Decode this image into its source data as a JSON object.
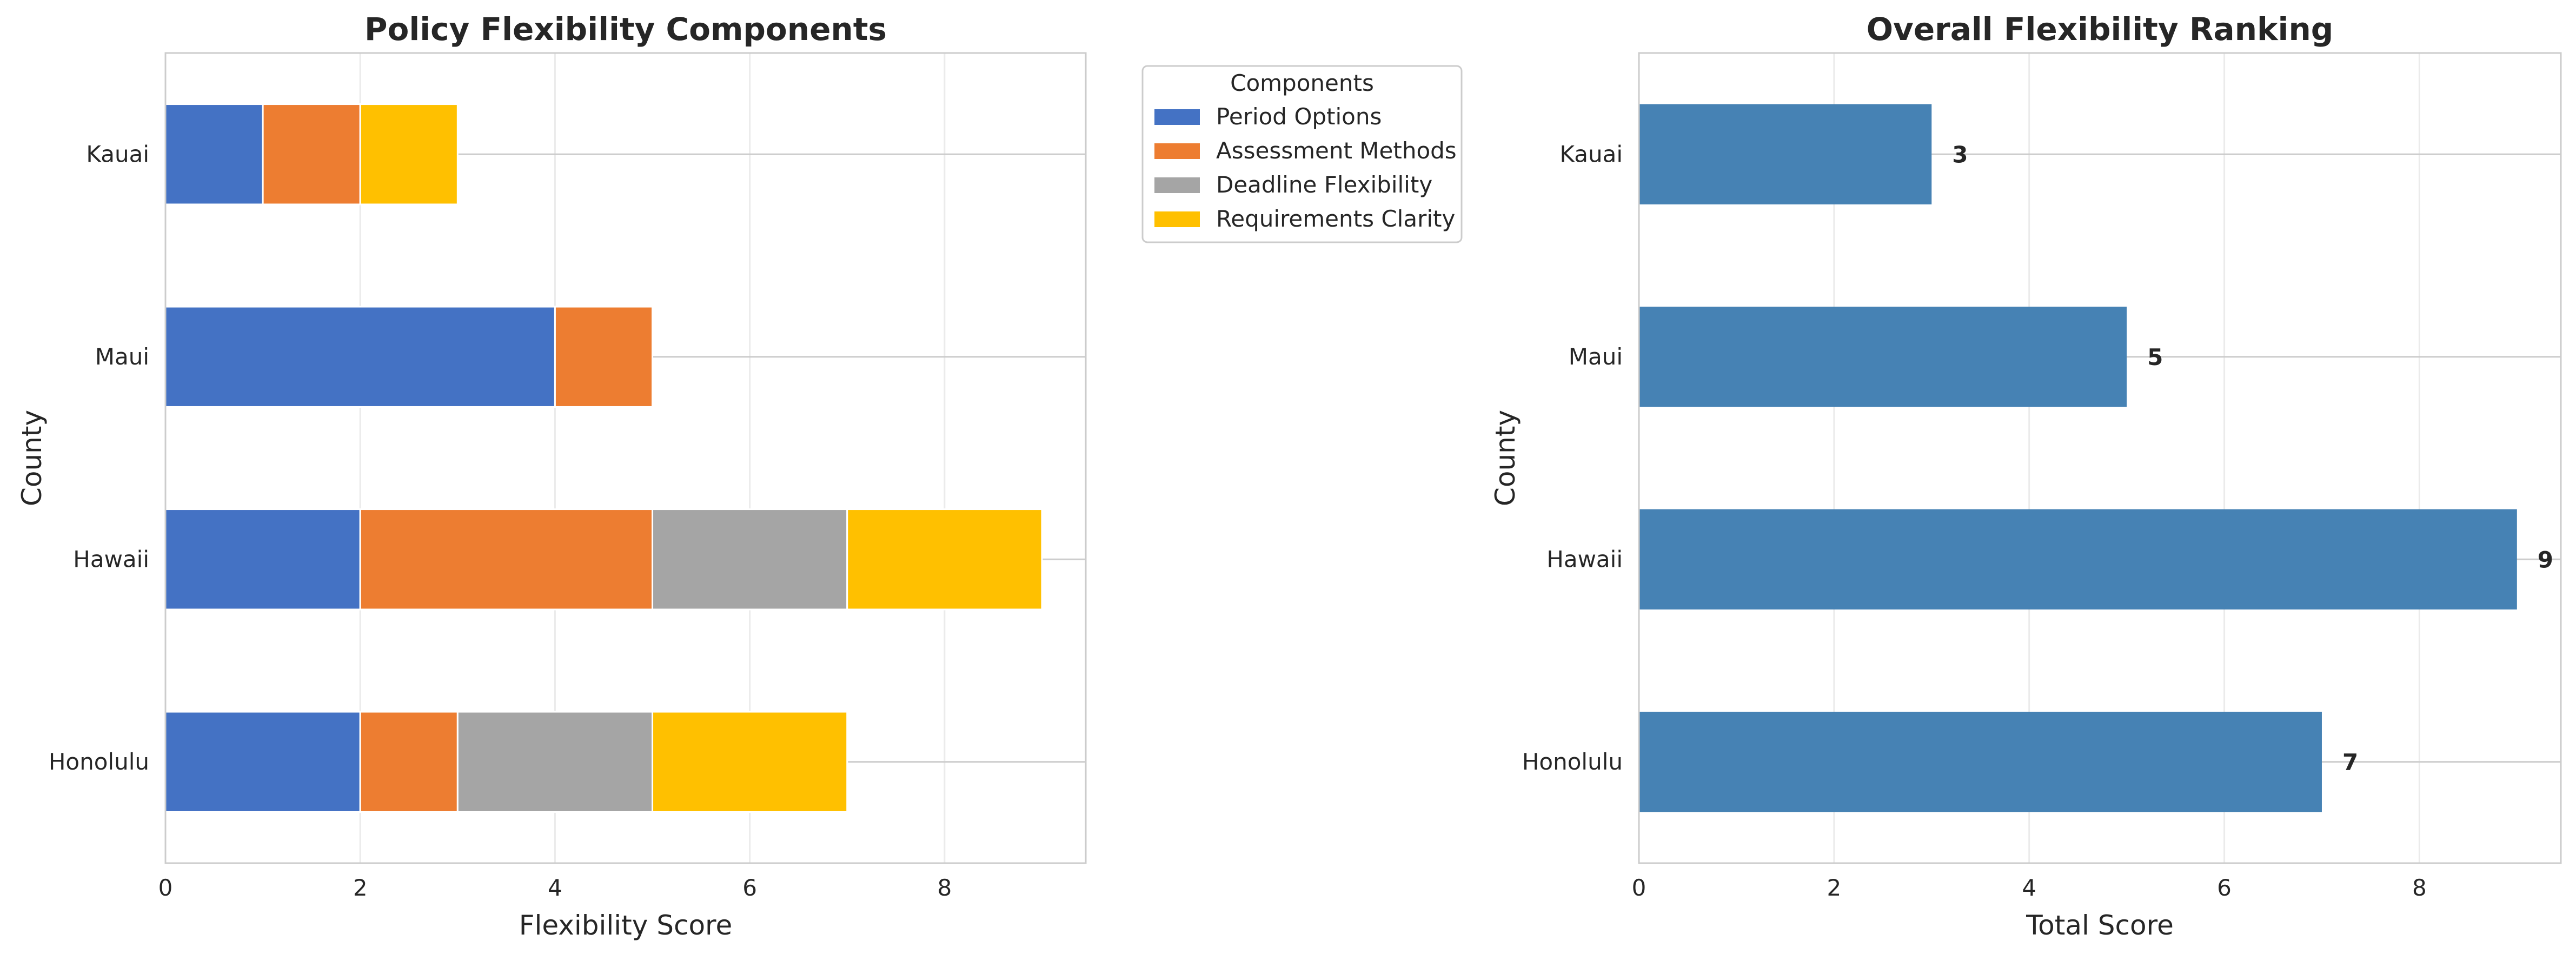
{
  "chart_data": [
    {
      "type": "bar",
      "orientation": "horizontal",
      "stacked": true,
      "title": "Policy Flexibility Components",
      "xlabel": "Flexibility Score",
      "ylabel": "County",
      "categories": [
        "Honolulu",
        "Hawaii",
        "Maui",
        "Kauai"
      ],
      "xlim": [
        0,
        9.45
      ],
      "xticks": [
        0,
        2,
        4,
        6,
        8
      ],
      "grid": true,
      "legend": {
        "title": "Components",
        "placement": "outside-top-right"
      },
      "series": [
        {
          "name": "Period Options",
          "color": "#4472C4",
          "values": [
            2,
            2,
            4,
            1
          ]
        },
        {
          "name": "Assessment Methods",
          "color": "#ED7D31",
          "values": [
            1,
            3,
            1,
            1
          ]
        },
        {
          "name": "Deadline Flexibility",
          "color": "#A5A5A5",
          "values": [
            2,
            2,
            0,
            0
          ]
        },
        {
          "name": "Requirements Clarity",
          "color": "#FFC000",
          "values": [
            2,
            2,
            0,
            1
          ]
        }
      ]
    },
    {
      "type": "bar",
      "orientation": "horizontal",
      "title": "Overall Flexibility Ranking",
      "xlabel": "Total Score",
      "ylabel": "County",
      "categories": [
        "Honolulu",
        "Hawaii",
        "Maui",
        "Kauai"
      ],
      "values": [
        7,
        9,
        5,
        3
      ],
      "data_labels": [
        "7",
        "9",
        "5",
        "3"
      ],
      "color": "#4682B4",
      "xlim": [
        0,
        9.45
      ],
      "xticks": [
        0,
        2,
        4,
        6,
        8
      ],
      "grid": true
    }
  ]
}
